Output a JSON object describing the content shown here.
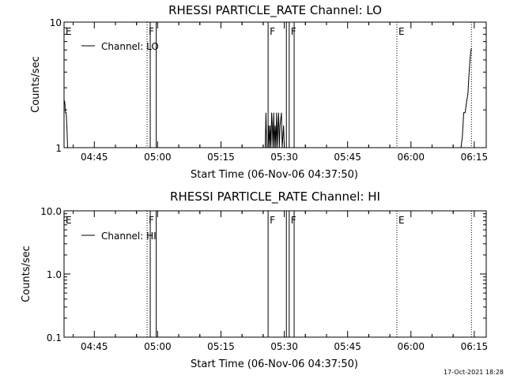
{
  "footer_stamp": "17-Oct-2021 18:28",
  "chart_data": [
    {
      "type": "line",
      "title": "RHESSI PARTICLE_RATE Channel: LO",
      "xlabel": "Start Time (06-Nov-06 04:37:50)",
      "ylabel": "Counts/sec",
      "yscale": "log",
      "ylim": [
        1,
        10
      ],
      "xlim_minutes": [
        0,
        100
      ],
      "x_ticks": [
        "04:45",
        "05:00",
        "05:15",
        "05:30",
        "05:45",
        "06:00",
        "06:15"
      ],
      "y_ticks": [
        "1",
        "10"
      ],
      "legend": "Channel: LO",
      "legend_position": "top-left",
      "markers": [
        {
          "label": "E",
          "time": "04:37:50",
          "style": "solid"
        },
        {
          "label": "F",
          "time": "04:57:30",
          "style": "dotted"
        },
        {
          "label": "",
          "time": "04:58:15",
          "style": "solid"
        },
        {
          "label": "",
          "time": "04:59:40",
          "style": "solid"
        },
        {
          "label": "F",
          "time": "05:26:10",
          "style": "solid"
        },
        {
          "label": "",
          "time": "05:30:30",
          "style": "solid"
        },
        {
          "label": "F",
          "time": "05:31:10",
          "style": "solid"
        },
        {
          "label": "",
          "time": "05:32:20",
          "style": "solid"
        },
        {
          "label": "E",
          "time": "05:56:40",
          "style": "dotted"
        },
        {
          "label": "",
          "time": "06:14:20",
          "style": "dotted"
        }
      ],
      "series": [
        {
          "name": "Channel: LO",
          "segments": [
            [
              [
                "04:37:50",
                2.4
              ],
              [
                "04:38:00",
                2.3
              ],
              [
                "04:38:10",
                1.9
              ],
              [
                "04:38:20",
                1.9
              ],
              [
                "04:38:30",
                1.5
              ],
              [
                "04:38:40",
                1.0
              ]
            ],
            [
              [
                "05:25:30",
                1.0
              ],
              [
                "05:25:40",
                1.9
              ],
              [
                "05:25:50",
                1.0
              ],
              [
                "05:26:10",
                1.0
              ],
              [
                "05:26:20",
                1.5
              ],
              [
                "05:26:30",
                1.0
              ],
              [
                "05:26:40",
                1.5
              ],
              [
                "05:26:50",
                1.0
              ],
              [
                "05:27:00",
                1.9
              ],
              [
                "05:27:10",
                1.5
              ],
              [
                "05:27:20",
                1.0
              ],
              [
                "05:27:30",
                1.9
              ],
              [
                "05:27:40",
                1.0
              ],
              [
                "05:27:50",
                1.5
              ],
              [
                "05:28:00",
                1.0
              ],
              [
                "05:28:10",
                1.9
              ],
              [
                "05:28:20",
                1.0
              ],
              [
                "05:28:30",
                1.5
              ],
              [
                "05:28:40",
                1.9
              ],
              [
                "05:28:50",
                1.0
              ],
              [
                "05:29:00",
                1.5
              ],
              [
                "05:29:20",
                1.9
              ],
              [
                "05:29:30",
                1.0
              ],
              [
                "05:29:50",
                1.5
              ],
              [
                "05:30:00",
                1.0
              ]
            ],
            [
              [
                "06:11:50",
                1.0
              ],
              [
                "06:12:10",
                1.2
              ],
              [
                "06:12:20",
                1.5
              ],
              [
                "06:12:30",
                1.9
              ],
              [
                "06:12:50",
                1.9
              ],
              [
                "06:13:10",
                2.3
              ],
              [
                "06:13:30",
                2.7
              ],
              [
                "06:13:40",
                3.5
              ],
              [
                "06:13:50",
                4.2
              ],
              [
                "06:14:00",
                5.0
              ],
              [
                "06:14:10",
                5.8
              ],
              [
                "06:14:20",
                6.2
              ]
            ]
          ]
        }
      ]
    },
    {
      "type": "line",
      "title": "RHESSI PARTICLE_RATE Channel: HI",
      "xlabel": "Start Time (06-Nov-06 04:37:50)",
      "ylabel": "Counts/sec",
      "yscale": "log",
      "ylim": [
        0.1,
        10
      ],
      "xlim_minutes": [
        0,
        100
      ],
      "x_ticks": [
        "04:45",
        "05:00",
        "05:15",
        "05:30",
        "05:45",
        "06:00",
        "06:15"
      ],
      "y_ticks": [
        "0.1",
        "1.0",
        "10.0"
      ],
      "legend": "Channel: HI",
      "legend_position": "top-left",
      "markers": [
        {
          "label": "E",
          "time": "04:37:50",
          "style": "solid"
        },
        {
          "label": "F",
          "time": "04:57:30",
          "style": "dotted"
        },
        {
          "label": "",
          "time": "04:58:15",
          "style": "solid"
        },
        {
          "label": "",
          "time": "04:59:40",
          "style": "solid"
        },
        {
          "label": "F",
          "time": "05:26:10",
          "style": "solid"
        },
        {
          "label": "",
          "time": "05:30:30",
          "style": "solid"
        },
        {
          "label": "F",
          "time": "05:31:10",
          "style": "solid"
        },
        {
          "label": "",
          "time": "05:32:20",
          "style": "solid"
        },
        {
          "label": "E",
          "time": "05:56:40",
          "style": "dotted"
        },
        {
          "label": "",
          "time": "06:14:20",
          "style": "dotted"
        }
      ],
      "series": [
        {
          "name": "Channel: HI",
          "segments": []
        }
      ]
    }
  ]
}
